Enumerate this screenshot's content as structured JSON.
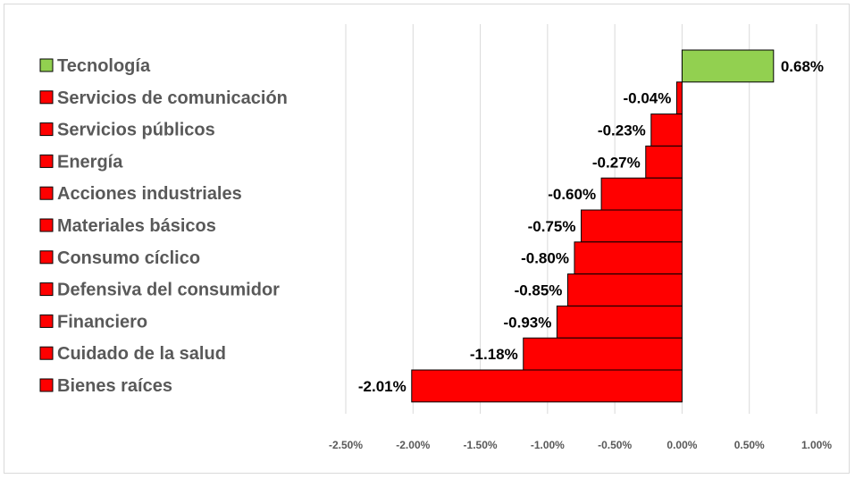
{
  "chart_data": {
    "type": "bar",
    "orientation": "horizontal",
    "title": "",
    "xlabel": "",
    "ylabel": "",
    "xlim": [
      -0.025,
      0.01
    ],
    "ticks": [
      -0.025,
      -0.02,
      -0.015,
      -0.01,
      -0.005,
      0,
      0.005,
      0.01
    ],
    "tick_labels": [
      "-2.50%",
      "-2.00%",
      "-1.50%",
      "-1.00%",
      "-0.50%",
      "0.00%",
      "0.50%",
      "1.00%"
    ],
    "grid": true,
    "legend_position": "left",
    "categories": [
      "Tecnología",
      "Servicios de comunicación",
      "Servicios públicos",
      "Energía",
      "Acciones industriales",
      "Materiales básicos",
      "Consumo cíclico",
      "Defensiva del consumidor",
      "Financiero",
      "Cuidado de la salud",
      "Bienes raíces"
    ],
    "values": [
      0.0068,
      -0.0004,
      -0.0023,
      -0.0027,
      -0.006,
      -0.0075,
      -0.008,
      -0.0085,
      -0.0093,
      -0.0118,
      -0.0201
    ],
    "value_labels": [
      "0.68%",
      "-0.04%",
      "-0.23%",
      "-0.27%",
      "-0.60%",
      "-0.75%",
      "-0.80%",
      "-0.85%",
      "-0.93%",
      "-1.18%",
      "-2.01%"
    ],
    "colors": {
      "positive": "#92d050",
      "negative": "#ff0000",
      "bar_border": "#000000",
      "grid": "#d9d9d9"
    }
  }
}
